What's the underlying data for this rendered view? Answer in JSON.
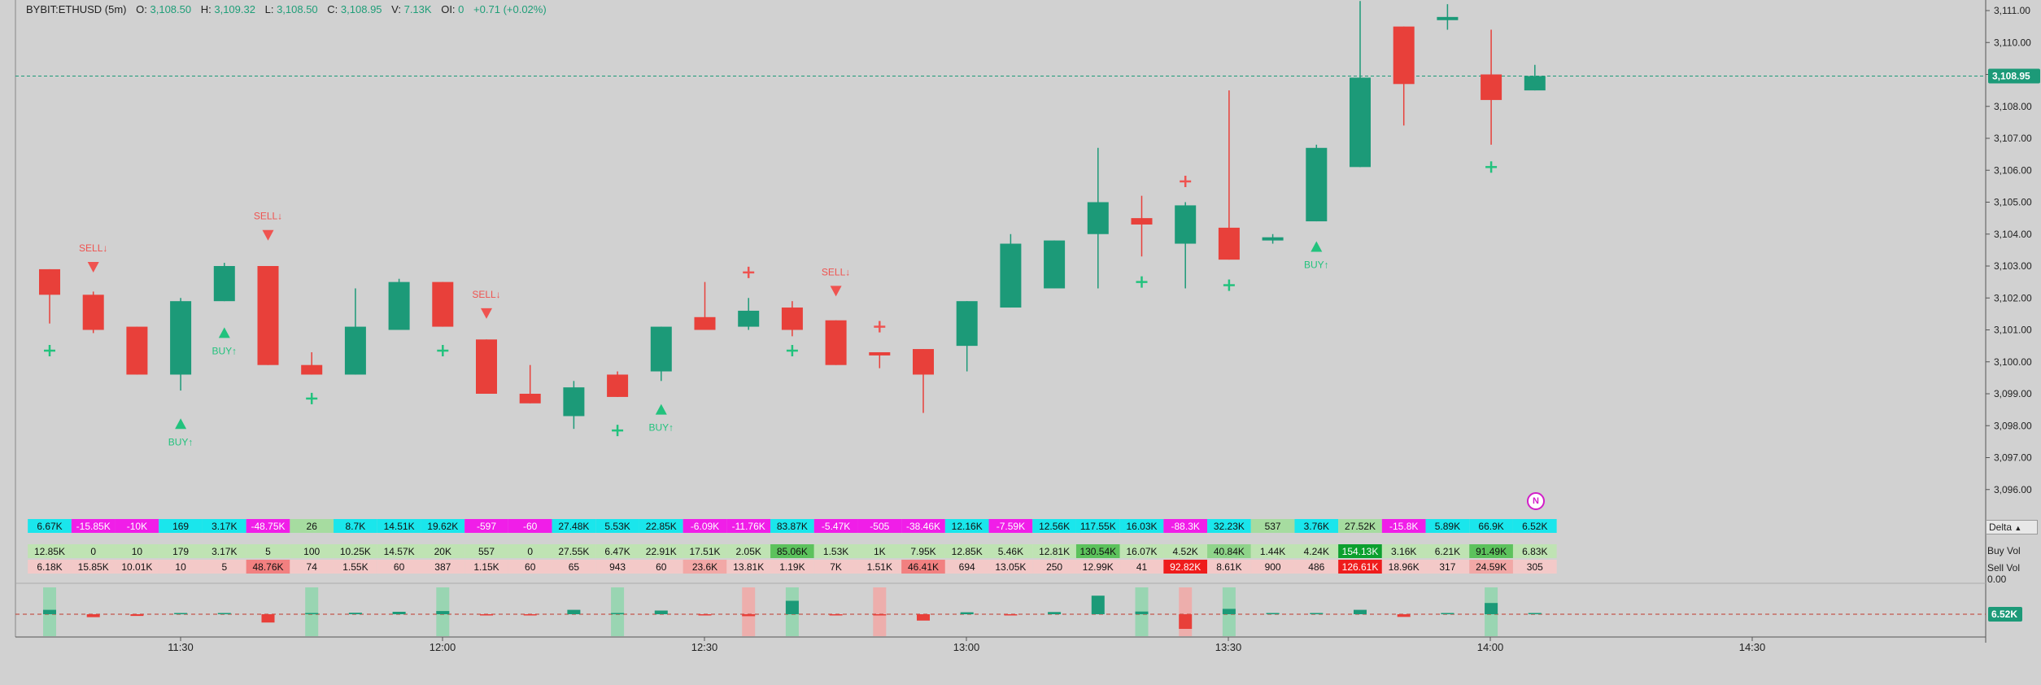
{
  "legend": {
    "symbol": "BYBIT:ETHUSD (5m)",
    "open_label": "O:",
    "open": "3,108.50",
    "high_label": "H:",
    "high": "3,109.32",
    "low_label": "L:",
    "low": "3,108.50",
    "close_label": "C:",
    "close": "3,108.95",
    "volume_label": "V:",
    "volume": "7.13K",
    "oi_label": "OI:",
    "oi": "0",
    "change": "+0.71",
    "change_pct": "(+0.02%)"
  },
  "colors": {
    "up": "#1c9a78",
    "down": "#e8403a",
    "signal_up": "#22c27d",
    "signal_down": "#ef5350",
    "delta_pos": "#1ae6ec",
    "delta_neg": "#f01ee8",
    "buy_cell": "#bfe3b3",
    "sell_cell": "#f3c9c8"
  },
  "icons": {
    "badge": "n-circle-icon",
    "dropdown": "triangle-up-icon"
  },
  "chart_data": {
    "type": "candlestick",
    "symbol": "BYBIT:ETHUSD",
    "interval": "5m",
    "ylim": [
      3095.2,
      3111.4
    ],
    "price_ticks": [
      "3,111.00",
      "3,110.00",
      "3,109.00",
      "3,108.00",
      "3,107.00",
      "3,106.00",
      "3,105.00",
      "3,104.00",
      "3,103.00",
      "3,102.00",
      "3,101.00",
      "3,100.00",
      "3,099.00",
      "3,098.00",
      "3,097.00",
      "3,096.00"
    ],
    "current_price": "3,108.95",
    "time_labels": [
      "11:30",
      "12:00",
      "12:30",
      "13:00",
      "13:30",
      "14:00",
      "14:30"
    ],
    "candles": [
      {
        "o": 3102.9,
        "h": 3102.9,
        "l": 3101.2,
        "c": 3102.1
      },
      {
        "o": 3102.1,
        "h": 3102.2,
        "l": 3100.9,
        "c": 3101.0
      },
      {
        "o": 3101.1,
        "h": 3101.1,
        "l": 3099.6,
        "c": 3099.6
      },
      {
        "o": 3099.6,
        "h": 3102.0,
        "l": 3099.1,
        "c": 3101.9
      },
      {
        "o": 3101.9,
        "h": 3103.1,
        "l": 3101.9,
        "c": 3103.0
      },
      {
        "o": 3103.0,
        "h": 3103.0,
        "l": 3099.9,
        "c": 3099.9
      },
      {
        "o": 3099.9,
        "h": 3100.3,
        "l": 3099.6,
        "c": 3099.6
      },
      {
        "o": 3099.6,
        "h": 3102.3,
        "l": 3099.6,
        "c": 3101.1
      },
      {
        "o": 3101.0,
        "h": 3102.6,
        "l": 3101.0,
        "c": 3102.5
      },
      {
        "o": 3102.5,
        "h": 3102.5,
        "l": 3101.1,
        "c": 3101.1
      },
      {
        "o": 3100.7,
        "h": 3100.7,
        "l": 3099.0,
        "c": 3099.0
      },
      {
        "o": 3099.0,
        "h": 3099.9,
        "l": 3098.7,
        "c": 3098.7
      },
      {
        "o": 3098.3,
        "h": 3099.4,
        "l": 3097.9,
        "c": 3099.2
      },
      {
        "o": 3099.6,
        "h": 3099.7,
        "l": 3098.9,
        "c": 3098.9
      },
      {
        "o": 3099.7,
        "h": 3101.1,
        "l": 3099.4,
        "c": 3101.1
      },
      {
        "o": 3101.4,
        "h": 3102.5,
        "l": 3101.0,
        "c": 3101.0
      },
      {
        "o": 3101.1,
        "h": 3102.0,
        "l": 3101.0,
        "c": 3101.6
      },
      {
        "o": 3101.7,
        "h": 3101.9,
        "l": 3100.8,
        "c": 3101.0
      },
      {
        "o": 3101.3,
        "h": 3101.3,
        "l": 3099.9,
        "c": 3099.9
      },
      {
        "o": 3100.3,
        "h": 3100.3,
        "l": 3099.8,
        "c": 3100.2
      },
      {
        "o": 3100.4,
        "h": 3100.4,
        "l": 3098.4,
        "c": 3099.6
      },
      {
        "o": 3100.5,
        "h": 3101.9,
        "l": 3099.7,
        "c": 3101.9
      },
      {
        "o": 3101.7,
        "h": 3104.0,
        "l": 3101.7,
        "c": 3103.7
      },
      {
        "o": 3102.3,
        "h": 3103.8,
        "l": 3102.3,
        "c": 3103.8
      },
      {
        "o": 3104.0,
        "h": 3106.7,
        "l": 3102.3,
        "c": 3105.0
      },
      {
        "o": 3104.5,
        "h": 3105.2,
        "l": 3103.3,
        "c": 3104.3
      },
      {
        "o": 3103.7,
        "h": 3105.0,
        "l": 3102.3,
        "c": 3104.9
      },
      {
        "o": 3104.2,
        "h": 3108.5,
        "l": 3103.2,
        "c": 3103.2
      },
      {
        "o": 3103.8,
        "h": 3104.0,
        "l": 3103.7,
        "c": 3103.9
      },
      {
        "o": 3104.4,
        "h": 3106.8,
        "l": 3104.4,
        "c": 3106.7
      },
      {
        "o": 3106.1,
        "h": 3111.3,
        "l": 3106.1,
        "c": 3108.9
      },
      {
        "o": 3110.5,
        "h": 3110.5,
        "l": 3107.4,
        "c": 3108.7
      },
      {
        "o": 3110.7,
        "h": 3111.2,
        "l": 3110.4,
        "c": 3110.8
      },
      {
        "o": 3109.0,
        "h": 3110.4,
        "l": 3106.8,
        "c": 3108.2
      },
      {
        "o": 3108.5,
        "h": 3109.3,
        "l": 3108.5,
        "c": 3108.95
      }
    ],
    "signals": [
      {
        "i": 0,
        "type": "plus",
        "side": "buy",
        "price": 3100.35
      },
      {
        "i": 1,
        "type": "arrow",
        "side": "sell",
        "price": 3102.95,
        "label": "SELL↓"
      },
      {
        "i": 3,
        "type": "arrow",
        "side": "buy",
        "price": 3098.05,
        "label": "BUY↑"
      },
      {
        "i": 4,
        "type": "arrow",
        "side": "buy",
        "price": 3100.9,
        "label": "BUY↑"
      },
      {
        "i": 5,
        "type": "arrow",
        "side": "sell",
        "price": 3103.95,
        "label": "SELL↓"
      },
      {
        "i": 6,
        "type": "plus",
        "side": "buy",
        "price": 3098.85
      },
      {
        "i": 9,
        "type": "plus",
        "side": "buy",
        "price": 3100.35
      },
      {
        "i": 10,
        "type": "arrow",
        "side": "sell",
        "price": 3101.5,
        "label": "SELL↓"
      },
      {
        "i": 13,
        "type": "plus",
        "side": "buy",
        "price": 3097.85
      },
      {
        "i": 14,
        "type": "arrow",
        "side": "buy",
        "price": 3098.5,
        "label": "BUY↑"
      },
      {
        "i": 16,
        "type": "plus",
        "side": "sell",
        "price": 3102.8
      },
      {
        "i": 17,
        "type": "plus",
        "side": "buy",
        "price": 3100.35
      },
      {
        "i": 18,
        "type": "arrow",
        "side": "sell",
        "price": 3102.2,
        "label": "SELL↓"
      },
      {
        "i": 19,
        "type": "plus",
        "side": "sell",
        "price": 3101.1
      },
      {
        "i": 25,
        "type": "plus",
        "side": "buy",
        "price": 3102.5
      },
      {
        "i": 26,
        "type": "plus",
        "side": "sell",
        "price": 3105.65
      },
      {
        "i": 27,
        "type": "plus",
        "side": "buy",
        "price": 3102.4
      },
      {
        "i": 29,
        "type": "arrow",
        "side": "buy",
        "price": 3103.6,
        "label": "BUY↑"
      },
      {
        "i": 33,
        "type": "plus",
        "side": "buy",
        "price": 3106.1
      }
    ],
    "footprint": {
      "delta_label": "Delta",
      "buy_label": "Buy Vol",
      "sell_label": "Sell Vol",
      "delta": [
        "6.67K",
        "-15.85K",
        "-10K",
        "169",
        "3.17K",
        "-48.75K",
        "26",
        "8.7K",
        "14.51K",
        "19.62K",
        "-597",
        "-60",
        "27.48K",
        "5.53K",
        "22.85K",
        "-6.09K",
        "-11.76K",
        "83.87K",
        "-5.47K",
        "-505",
        "-38.46K",
        "12.16K",
        "-7.59K",
        "12.56K",
        "117.55K",
        "16.03K",
        "-88.3K",
        "32.23K",
        "537",
        "3.76K",
        "27.52K",
        "-15.8K",
        "5.89K",
        "66.9K",
        "6.52K"
      ],
      "buy": [
        "12.85K",
        "0",
        "10",
        "179",
        "3.17K",
        "5",
        "100",
        "10.25K",
        "14.57K",
        "20K",
        "557",
        "0",
        "27.55K",
        "6.47K",
        "22.91K",
        "17.51K",
        "2.05K",
        "85.06K",
        "1.53K",
        "1K",
        "7.95K",
        "12.85K",
        "5.46K",
        "12.81K",
        "130.54K",
        "16.07K",
        "4.52K",
        "40.84K",
        "1.44K",
        "4.24K",
        "154.13K",
        "3.16K",
        "6.21K",
        "91.49K",
        "6.83K"
      ],
      "sell": [
        "6.18K",
        "15.85K",
        "10.01K",
        "10",
        "5",
        "48.76K",
        "74",
        "1.55K",
        "60",
        "387",
        "1.15K",
        "60",
        "65",
        "943",
        "60",
        "23.6K",
        "13.81K",
        "1.19K",
        "7K",
        "1.51K",
        "46.41K",
        "694",
        "13.05K",
        "250",
        "12.99K",
        "41",
        "92.82K",
        "8.61K",
        "900",
        "486",
        "126.61K",
        "18.96K",
        "317",
        "24.59K",
        "305"
      ]
    },
    "delta_histogram": {
      "zero_label": "0.00",
      "current": "6.52K",
      "values": [
        0.9,
        -0.6,
        -0.35,
        0.05,
        0.12,
        -1.7,
        0.02,
        0.3,
        0.5,
        0.65,
        -0.05,
        -0.02,
        0.9,
        0.2,
        0.75,
        -0.2,
        -0.4,
        2.75,
        -0.2,
        -0.05,
        -1.3,
        0.4,
        -0.25,
        0.45,
        3.8,
        0.55,
        -3.0,
        1.1,
        0.05,
        0.15,
        0.9,
        -0.55,
        0.2,
        2.3,
        0.22
      ],
      "highlights": [
        {
          "i": 0,
          "side": "buy"
        },
        {
          "i": 6,
          "side": "buy"
        },
        {
          "i": 9,
          "side": "buy"
        },
        {
          "i": 13,
          "side": "buy"
        },
        {
          "i": 16,
          "side": "sell"
        },
        {
          "i": 17,
          "side": "buy"
        },
        {
          "i": 19,
          "side": "sell"
        },
        {
          "i": 25,
          "side": "buy"
        },
        {
          "i": 26,
          "side": "sell"
        },
        {
          "i": 27,
          "side": "buy"
        },
        {
          "i": 33,
          "side": "buy"
        }
      ]
    }
  }
}
